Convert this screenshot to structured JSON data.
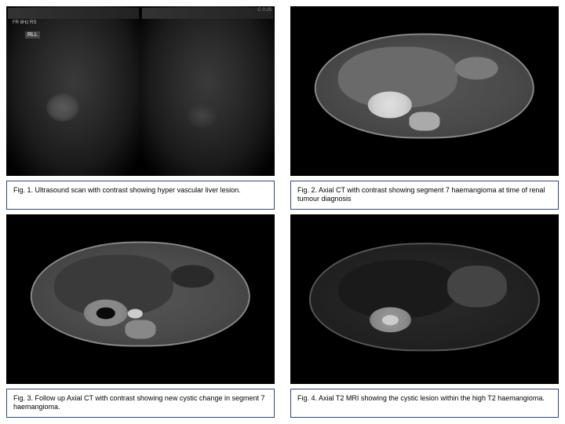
{
  "figures": {
    "fig1": {
      "caption": "Fig. 1. Ultrasound scan with contrast showing hyper vascular liver lesion.",
      "overlay_label": "FR 8Hz\nRS",
      "overlay_rll": "RLL",
      "overlay_right": "C 0:25"
    },
    "fig2": {
      "caption": "Fig. 2. Axial CT with contrast showing segment 7 haemangioma at time of renal tumour diagnosis"
    },
    "fig3": {
      "caption": "Fig. 3. Follow up Axial CT with contrast showing new cystic change in segment 7 haemangioma."
    },
    "fig4": {
      "caption": "Fig. 4. Axial T2 MRI showing the cystic lesion within the high T2 haemangioma."
    }
  },
  "styling": {
    "caption_border_color": "#2a4a7a",
    "caption_font_size": 9,
    "background": "#ffffff",
    "image_background": "#000000"
  }
}
